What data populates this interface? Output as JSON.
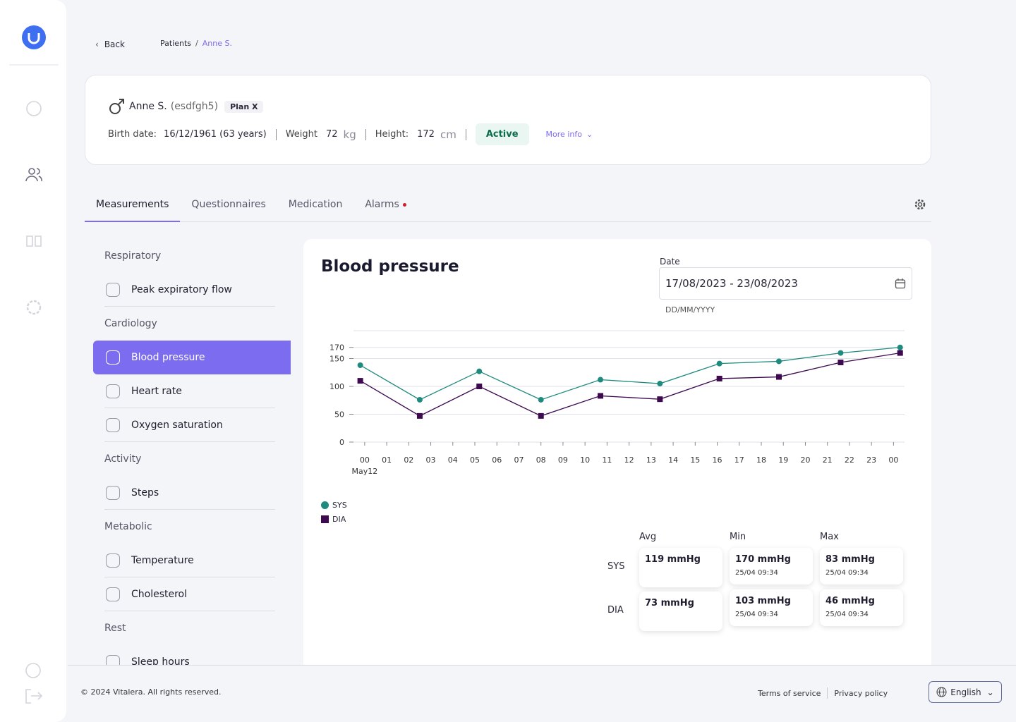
{
  "nav": {
    "back": "Back",
    "breadcrumb": [
      "Patients",
      "Anne S."
    ]
  },
  "patient": {
    "name": "Anne S.",
    "id": "(esdfgh5)",
    "plan": "Plan X",
    "birth_label": "Birth date:",
    "birth": "16/12/1961 (63 years)",
    "weight_label": "Weight",
    "weight": "72",
    "weight_unit": "kg",
    "height_label": "Height:",
    "height": "172",
    "height_unit": "cm",
    "status": "Active",
    "more": "More info"
  },
  "tabs": [
    {
      "label": "Measurements",
      "selected": true
    },
    {
      "label": "Questionnaires"
    },
    {
      "label": "Medication"
    },
    {
      "label": "Alarms",
      "alert": true
    }
  ],
  "menu": [
    {
      "group": "Respiratory",
      "items": [
        {
          "label": "Peak expiratory flow"
        }
      ]
    },
    {
      "group": "Cardiology",
      "items": [
        {
          "label": "Blood pressure",
          "selected": true
        },
        {
          "label": "Heart rate"
        },
        {
          "label": "Oxygen saturation"
        }
      ]
    },
    {
      "group": "Activity",
      "items": [
        {
          "label": "Steps"
        }
      ]
    },
    {
      "group": "Metabolic",
      "items": [
        {
          "label": "Temperature"
        },
        {
          "label": "Cholesterol"
        }
      ]
    },
    {
      "group": "Rest",
      "items": [
        {
          "label": "Sleep hours"
        }
      ]
    }
  ],
  "panel": {
    "date_label": "Date",
    "date_value": "17/08/2023 - 23/08/2023",
    "date_hint": "DD/MM/YYYY"
  },
  "chart_data": {
    "type": "line",
    "title": "Blood pressure",
    "x": [
      -0.2,
      2.5,
      5.2,
      8,
      10.7,
      13.4,
      16.1,
      18.8,
      21.6,
      24.3
    ],
    "x_date_label": "May12",
    "xlim": [
      -0.7,
      24.5
    ],
    "xticks": [
      {
        "value": 0,
        "label": "00"
      },
      {
        "value": 1,
        "label": "01"
      },
      {
        "value": 2,
        "label": "02"
      },
      {
        "value": 3,
        "label": "03"
      },
      {
        "value": 4,
        "label": "04"
      },
      {
        "value": 5,
        "label": "05"
      },
      {
        "value": 6,
        "label": "06"
      },
      {
        "value": 7,
        "label": "07"
      },
      {
        "value": 8,
        "label": "08"
      },
      {
        "value": 9,
        "label": "09"
      },
      10,
      11,
      12,
      13,
      14,
      15,
      16,
      17,
      18,
      19,
      20,
      21,
      22,
      23,
      {
        "value": 24,
        "label": "00"
      }
    ],
    "ylim": [
      0,
      200
    ],
    "yticks": [
      0,
      50,
      100,
      150,
      170
    ],
    "grid": true,
    "series": [
      {
        "name": "SYS",
        "color": "#1f8a7e",
        "marker": "circle",
        "values": [
          138,
          76,
          127,
          76,
          112,
          105,
          141,
          145,
          160,
          170
        ]
      },
      {
        "name": "DIA",
        "color": "#3d0a4f",
        "marker": "square",
        "values": [
          110,
          47,
          100,
          47,
          83,
          77,
          114,
          117,
          143,
          160
        ]
      }
    ]
  },
  "stats": {
    "columns": [
      "Avg",
      "Min",
      "Max"
    ],
    "rows": [
      {
        "name": "SYS",
        "cells": [
          {
            "value": "119 mmHg"
          },
          {
            "value": "170 mmHg",
            "date": "25/04 09:34"
          },
          {
            "value": "83 mmHg",
            "date": "25/04 09:34"
          }
        ]
      },
      {
        "name": "DIA",
        "cells": [
          {
            "value": "73 mmHg"
          },
          {
            "value": "103 mmHg",
            "date": "25/04 09:34"
          },
          {
            "value": "46 mmHg",
            "date": "25/04 09:34"
          }
        ]
      }
    ]
  },
  "footer": {
    "copyright": "© 2024 Vitalera. All rights reserved.",
    "links": [
      "Terms of service",
      "Privacy policy"
    ],
    "language": "English"
  }
}
